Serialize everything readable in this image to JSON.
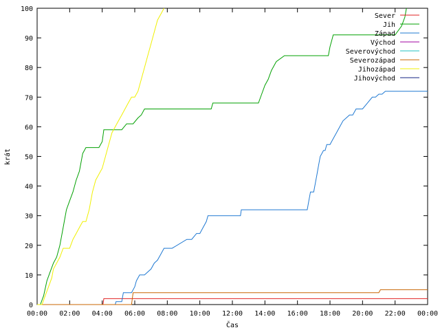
{
  "chart_data": {
    "type": "line",
    "xlabel": "Čas",
    "ylabel": "krát",
    "xlim": [
      0,
      24
    ],
    "ylim": [
      0,
      100
    ],
    "grid": false,
    "legend_position": "top-right",
    "x_ticks": [
      {
        "value": 0,
        "label": "00:00"
      },
      {
        "value": 2,
        "label": "02:00"
      },
      {
        "value": 4,
        "label": "04:00"
      },
      {
        "value": 6,
        "label": "06:00"
      },
      {
        "value": 8,
        "label": "08:00"
      },
      {
        "value": 10,
        "label": "10:00"
      },
      {
        "value": 12,
        "label": "12:00"
      },
      {
        "value": 14,
        "label": "14:00"
      },
      {
        "value": 16,
        "label": "16:00"
      },
      {
        "value": 18,
        "label": "18:00"
      },
      {
        "value": 20,
        "label": "20:00"
      },
      {
        "value": 22,
        "label": "22:00"
      },
      {
        "value": 24,
        "label": "00:00"
      }
    ],
    "y_ticks": [
      0,
      10,
      20,
      30,
      40,
      50,
      60,
      70,
      80,
      90,
      100
    ],
    "series": [
      {
        "name": "Sever",
        "color": "#e02020",
        "x": [
          0,
          4.05,
          4.1,
          24
        ],
        "y": [
          0,
          0,
          2,
          2
        ]
      },
      {
        "name": "Jih",
        "color": "#00a000",
        "x": [
          0,
          0.2,
          0.4,
          0.6,
          0.8,
          1.0,
          1.2,
          1.4,
          1.6,
          1.8,
          2.0,
          2.2,
          2.4,
          2.6,
          2.8,
          3.0,
          3.2,
          3.5,
          3.8,
          4.0,
          4.1,
          4.3,
          5.2,
          5.5,
          5.9,
          6.2,
          6.4,
          6.6,
          10.7,
          10.8,
          13.6,
          13.8,
          14.0,
          14.2,
          14.4,
          14.6,
          14.7,
          15.2,
          17.9,
          18.0,
          18.1,
          18.2,
          20.8,
          21.0,
          22.0,
          22.4,
          22.6,
          22.7
        ],
        "y": [
          0,
          0,
          3,
          8,
          11,
          14,
          16,
          20,
          26,
          32,
          35,
          38,
          42,
          45,
          51,
          53,
          53,
          53,
          53,
          55,
          59,
          59,
          59,
          61,
          61,
          63,
          64,
          66,
          66,
          68,
          68,
          71,
          74,
          76,
          79,
          81,
          82,
          84,
          84,
          87,
          89,
          91,
          91,
          91,
          91,
          94,
          97,
          100
        ]
      },
      {
        "name": "Západ",
        "color": "#1e78d2",
        "x": [
          0,
          4.8,
          4.85,
          5.2,
          5.3,
          5.6,
          5.8,
          6.0,
          6.1,
          6.3,
          6.6,
          7.0,
          7.2,
          7.4,
          7.6,
          7.8,
          8.3,
          9.2,
          9.5,
          9.8,
          10.0,
          10.2,
          10.4,
          10.5,
          10.6,
          10.7,
          12.5,
          12.55,
          16.6,
          16.7,
          16.8,
          17.0,
          17.1,
          17.2,
          17.3,
          17.4,
          17.5,
          17.6,
          17.7,
          17.8,
          18.0,
          18.2,
          18.4,
          18.6,
          18.8,
          19.0,
          19.2,
          19.4,
          19.6,
          19.8,
          20.0,
          20.3,
          20.6,
          20.8,
          21.0,
          21.2,
          21.4,
          21.6,
          21.8,
          22.0,
          22.2,
          22.4,
          22.6,
          22.8,
          24
        ],
        "y": [
          0,
          0,
          1,
          1,
          4,
          4,
          4,
          6,
          8,
          10,
          10,
          12,
          14,
          15,
          17,
          19,
          19,
          22,
          22,
          24,
          24,
          26,
          28,
          30,
          30,
          30,
          30,
          32,
          32,
          35,
          38,
          38,
          41,
          44,
          47,
          50,
          51,
          52,
          52,
          54,
          54,
          56,
          58,
          60,
          62,
          63,
          64,
          64,
          66,
          66,
          66,
          68,
          70,
          70,
          71,
          71,
          72,
          72,
          72,
          72,
          72,
          72,
          72,
          72,
          72
        ]
      },
      {
        "name": "Východ",
        "color": "#a000a0",
        "x": [],
        "y": []
      },
      {
        "name": "Severovýchod",
        "color": "#20c0c0",
        "x": [],
        "y": []
      },
      {
        "name": "Severozápad",
        "color": "#c86400",
        "x": [
          0,
          5.8,
          5.9,
          21.0,
          21.1,
          24
        ],
        "y": [
          0,
          0,
          4,
          4,
          5,
          5
        ]
      },
      {
        "name": "Jihozápad",
        "color": "#f0f000",
        "x": [
          0,
          0.3,
          0.5,
          0.7,
          0.9,
          1.0,
          1.2,
          1.4,
          1.6,
          2.0,
          2.2,
          2.4,
          2.6,
          2.8,
          3.0,
          3.2,
          3.4,
          3.6,
          3.8,
          4.0,
          4.2,
          4.4,
          4.6,
          4.8,
          5.0,
          5.2,
          5.4,
          5.6,
          5.8,
          6.0,
          6.2,
          6.4,
          6.6,
          6.8,
          7.0,
          7.2,
          7.4,
          7.6,
          7.8
        ],
        "y": [
          0,
          0,
          3,
          6,
          9,
          12,
          14,
          16,
          19,
          19,
          22,
          24,
          26,
          28,
          28,
          32,
          38,
          42,
          44,
          46,
          50,
          54,
          58,
          60,
          62,
          64,
          66,
          68,
          70,
          70,
          72,
          76,
          80,
          84,
          88,
          92,
          96,
          98,
          100
        ]
      },
      {
        "name": "Jihovýchod",
        "color": "#102080",
        "x": [],
        "y": []
      }
    ]
  }
}
